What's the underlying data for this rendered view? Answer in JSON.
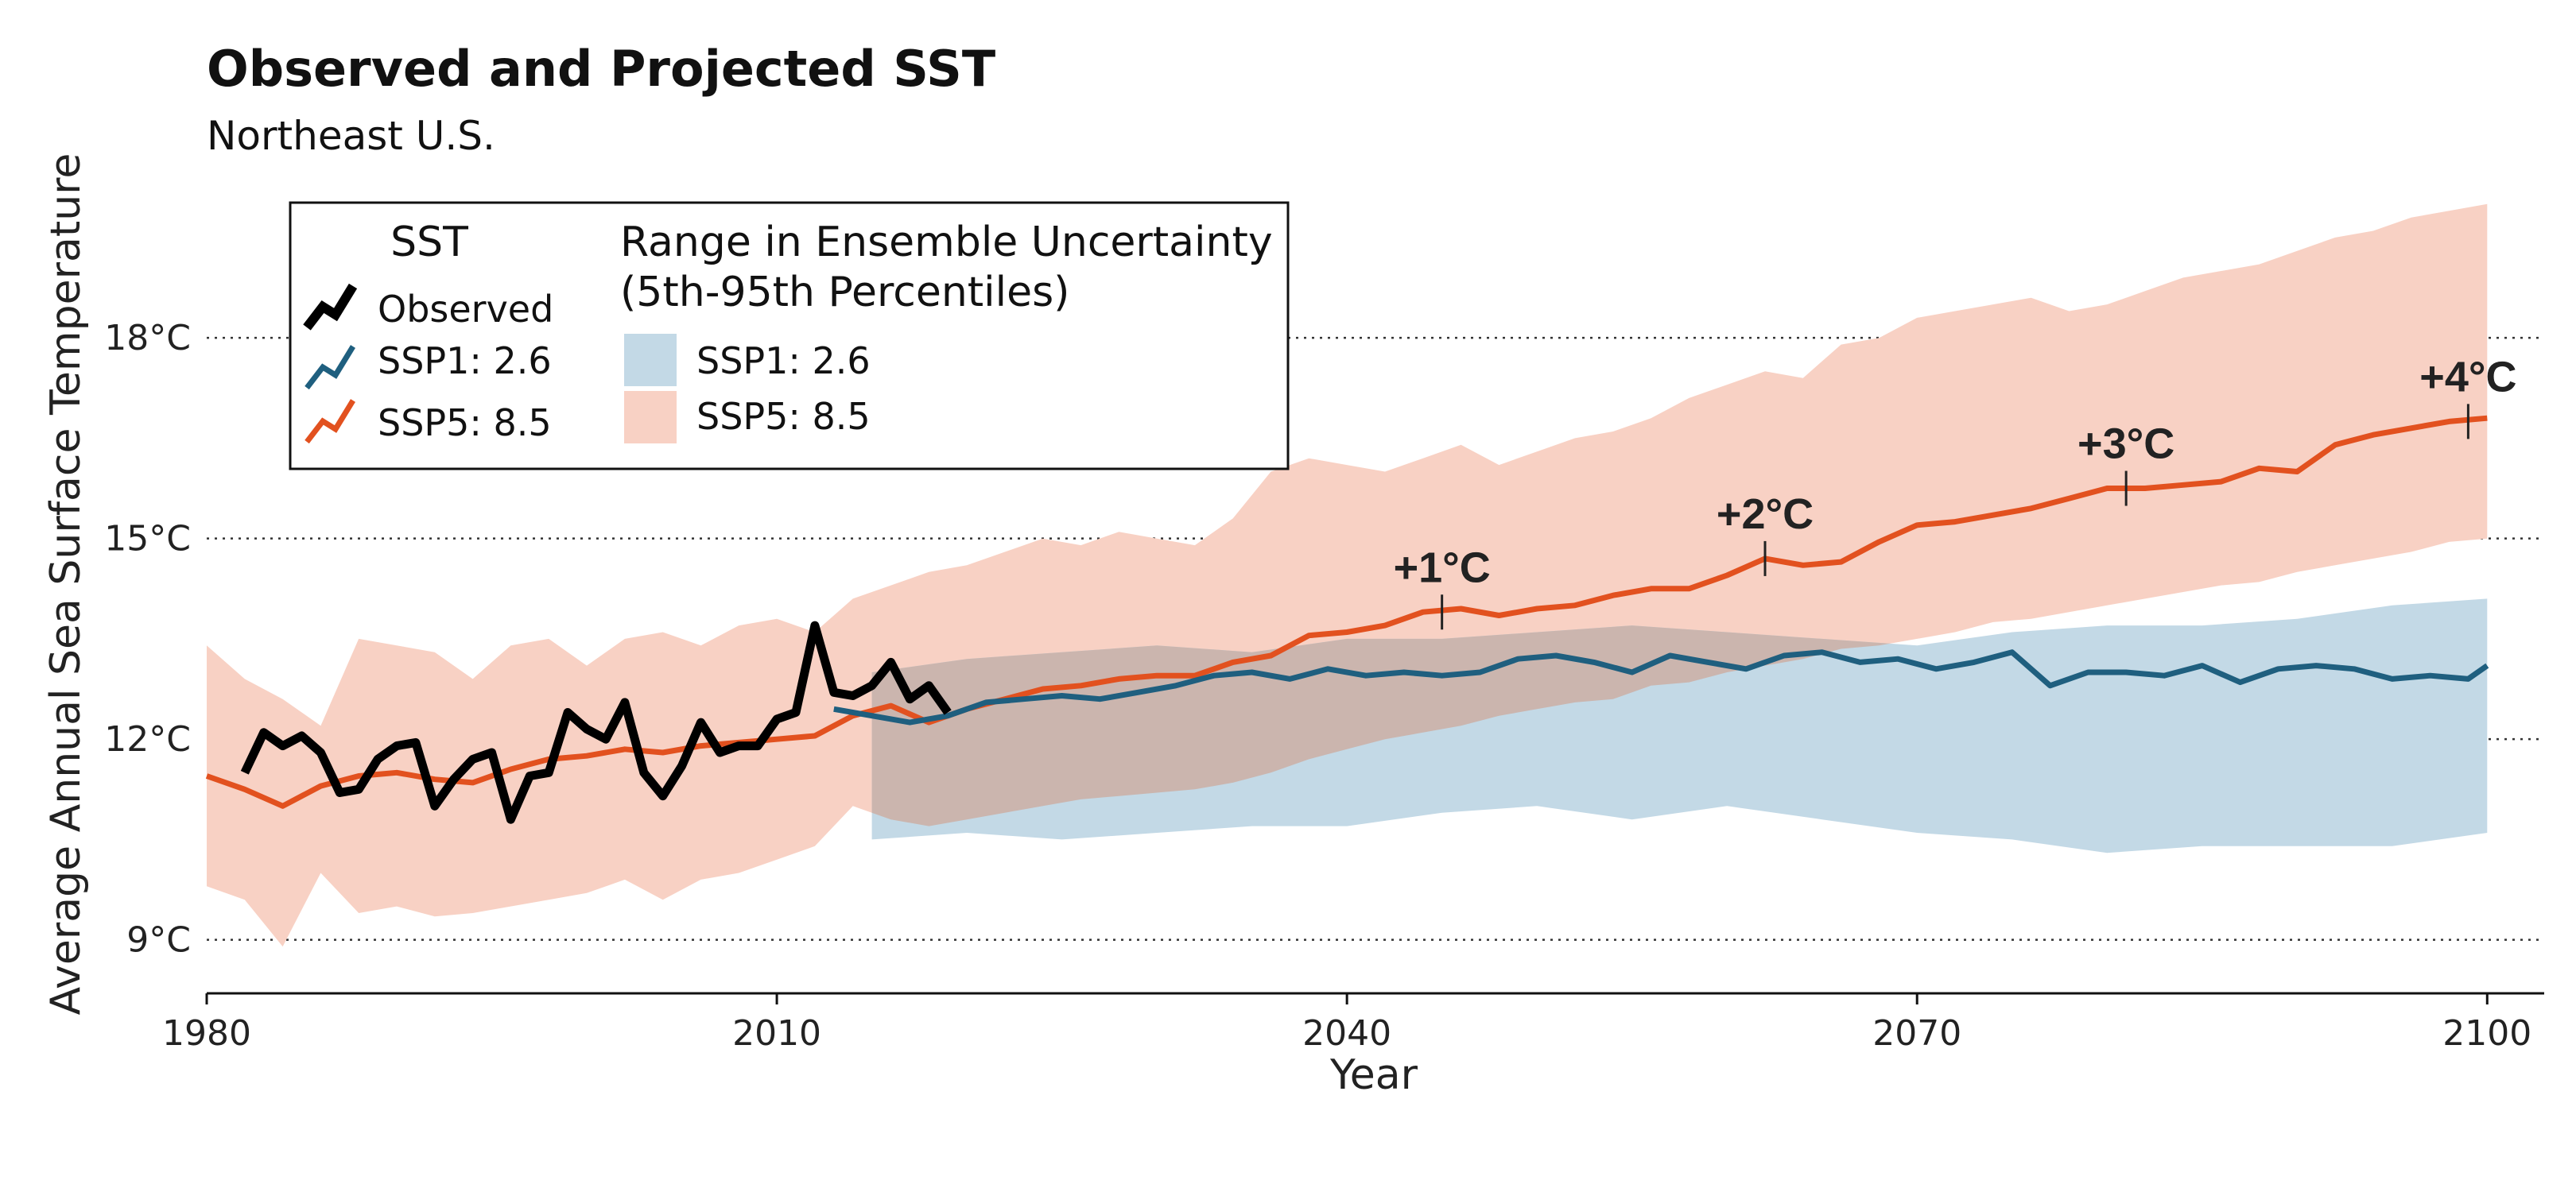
{
  "chart_data": {
    "type": "line",
    "title": "Observed and Projected SST",
    "subtitle": "Northeast U.S.",
    "xlabel": "Year",
    "ylabel": "Average Annual Sea Surface Temperature",
    "xlim": [
      1980,
      2103
    ],
    "ylim": [
      8.2,
      20.2
    ],
    "x_ticks": [
      1980,
      2010,
      2040,
      2070,
      2100
    ],
    "x_tick_labels": [
      "1980",
      "2010",
      "2040",
      "2070",
      "2100"
    ],
    "y_ticks": [
      9,
      12,
      15,
      18
    ],
    "y_tick_labels": [
      "9°C",
      "12°C",
      "15°C",
      "18°C"
    ],
    "grid": "horizontal dotted",
    "legend_placement": "top-left",
    "legend": {
      "sst_title": "SST",
      "sst_items": [
        "Observed",
        "SSP1: 2.6",
        "SSP5: 8.5"
      ],
      "range_title_line1": "Range in Ensemble Uncertainty",
      "range_title_line2": "(5th-95th Percentiles)",
      "range_items": [
        "SSP1: 2.6",
        "SSP5: 8.5"
      ]
    },
    "colors": {
      "observed": "#000000",
      "ssp1": "#1f5f7f",
      "ssp5": "#e2511f",
      "ssp1_band": "#c3d9e6",
      "ssp5_band": "#f8d1c4",
      "overlap_band": "#cbb5ae"
    },
    "series": [
      {
        "name": "Observed",
        "x": [
          1982,
          1983,
          1984,
          1985,
          1986,
          1987,
          1988,
          1989,
          1990,
          1991,
          1992,
          1993,
          1994,
          1995,
          1996,
          1997,
          1998,
          1999,
          2000,
          2001,
          2002,
          2003,
          2004,
          2005,
          2006,
          2007,
          2008,
          2009,
          2010,
          2011,
          2012,
          2013,
          2014,
          2015,
          2016,
          2017,
          2018,
          2019
        ],
        "values": [
          11.5,
          12.1,
          11.9,
          12.05,
          11.8,
          11.2,
          11.25,
          11.7,
          11.9,
          11.95,
          11.0,
          11.4,
          11.7,
          11.8,
          10.8,
          11.45,
          11.5,
          12.4,
          12.15,
          12.0,
          12.55,
          11.5,
          11.15,
          11.6,
          12.25,
          11.8,
          11.9,
          11.9,
          12.3,
          12.4,
          13.7,
          12.7,
          12.65,
          12.8,
          13.15,
          12.6,
          12.8,
          12.4
        ]
      },
      {
        "name": "SSP1: 2.6",
        "x": [
          2013,
          2015,
          2017,
          2019,
          2021,
          2023,
          2025,
          2027,
          2029,
          2031,
          2033,
          2035,
          2037,
          2039,
          2041,
          2043,
          2045,
          2047,
          2049,
          2051,
          2053,
          2055,
          2057,
          2059,
          2061,
          2063,
          2065,
          2067,
          2069,
          2071,
          2073,
          2075,
          2077,
          2079,
          2081,
          2083,
          2085,
          2087,
          2089,
          2091,
          2093,
          2095,
          2097,
          2099,
          2100
        ],
        "values": [
          12.45,
          12.35,
          12.25,
          12.35,
          12.55,
          12.6,
          12.65,
          12.6,
          12.7,
          12.8,
          12.95,
          13.0,
          12.9,
          13.05,
          12.95,
          13.0,
          12.95,
          13.0,
          13.2,
          13.25,
          13.15,
          13.0,
          13.25,
          13.15,
          13.05,
          13.25,
          13.3,
          13.15,
          13.2,
          13.05,
          13.15,
          13.3,
          12.8,
          13.0,
          13.0,
          12.95,
          13.1,
          12.85,
          13.05,
          13.1,
          13.05,
          12.9,
          12.95,
          12.9,
          13.1
        ]
      },
      {
        "name": "SSP5: 8.5",
        "x": [
          1980,
          1982,
          1984,
          1986,
          1988,
          1990,
          1992,
          1994,
          1996,
          1998,
          2000,
          2002,
          2004,
          2006,
          2008,
          2010,
          2012,
          2014,
          2016,
          2018,
          2020,
          2022,
          2024,
          2026,
          2028,
          2030,
          2032,
          2034,
          2036,
          2038,
          2040,
          2042,
          2044,
          2046,
          2048,
          2050,
          2052,
          2054,
          2056,
          2058,
          2060,
          2062,
          2064,
          2066,
          2068,
          2070,
          2072,
          2074,
          2076,
          2078,
          2080,
          2082,
          2084,
          2086,
          2088,
          2090,
          2092,
          2094,
          2096,
          2098,
          2100
        ],
        "values": [
          11.45,
          11.25,
          11.0,
          11.3,
          11.45,
          11.5,
          11.4,
          11.35,
          11.55,
          11.7,
          11.75,
          11.85,
          11.8,
          11.9,
          11.95,
          12.0,
          12.05,
          12.35,
          12.5,
          12.25,
          12.45,
          12.6,
          12.75,
          12.8,
          12.9,
          12.95,
          12.95,
          13.15,
          13.25,
          13.55,
          13.6,
          13.7,
          13.9,
          13.95,
          13.85,
          13.95,
          14.0,
          14.15,
          14.25,
          14.25,
          14.45,
          14.7,
          14.6,
          14.65,
          14.95,
          15.2,
          15.25,
          15.35,
          15.45,
          15.6,
          15.75,
          15.75,
          15.8,
          15.85,
          16.05,
          16.0,
          16.4,
          16.55,
          16.65,
          16.75,
          16.8
        ]
      }
    ],
    "bands": [
      {
        "name": "SSP1: 2.6",
        "x": [
          2015,
          2020,
          2025,
          2030,
          2035,
          2040,
          2045,
          2050,
          2055,
          2060,
          2065,
          2070,
          2075,
          2080,
          2085,
          2090,
          2095,
          2100
        ],
        "low": [
          10.5,
          10.6,
          10.5,
          10.6,
          10.7,
          10.7,
          10.9,
          11.0,
          10.8,
          11.0,
          10.8,
          10.6,
          10.5,
          10.3,
          10.4,
          10.4,
          10.4,
          10.6
        ],
        "high": [
          13.0,
          13.2,
          13.3,
          13.4,
          13.3,
          13.5,
          13.5,
          13.6,
          13.7,
          13.6,
          13.5,
          13.4,
          13.6,
          13.7,
          13.7,
          13.8,
          14.0,
          14.1
        ]
      },
      {
        "name": "SSP5: 8.5",
        "x": [
          1980,
          1982,
          1984,
          1986,
          1988,
          1990,
          1992,
          1994,
          1996,
          1998,
          2000,
          2002,
          2004,
          2006,
          2008,
          2010,
          2012,
          2014,
          2016,
          2018,
          2020,
          2022,
          2024,
          2026,
          2028,
          2030,
          2032,
          2034,
          2036,
          2038,
          2040,
          2042,
          2044,
          2046,
          2048,
          2050,
          2052,
          2054,
          2056,
          2058,
          2060,
          2062,
          2064,
          2066,
          2068,
          2070,
          2072,
          2074,
          2076,
          2078,
          2080,
          2082,
          2084,
          2086,
          2088,
          2090,
          2092,
          2094,
          2096,
          2098,
          2100
        ],
        "low": [
          9.8,
          9.6,
          8.9,
          10.0,
          9.4,
          9.5,
          9.35,
          9.4,
          9.5,
          9.6,
          9.7,
          9.9,
          9.6,
          9.9,
          10.0,
          10.2,
          10.4,
          11.0,
          10.8,
          10.7,
          10.8,
          10.9,
          11.0,
          11.1,
          11.15,
          11.2,
          11.25,
          11.35,
          11.5,
          11.7,
          11.85,
          12.0,
          12.1,
          12.2,
          12.35,
          12.45,
          12.55,
          12.6,
          12.8,
          12.85,
          13.0,
          13.1,
          13.2,
          13.35,
          13.4,
          13.5,
          13.6,
          13.75,
          13.8,
          13.9,
          14.0,
          14.1,
          14.2,
          14.3,
          14.35,
          14.5,
          14.6,
          14.7,
          14.8,
          14.95,
          15.0
        ],
        "high": [
          13.4,
          12.9,
          12.6,
          12.2,
          13.5,
          13.4,
          13.3,
          12.9,
          13.4,
          13.5,
          13.1,
          13.5,
          13.6,
          13.4,
          13.7,
          13.8,
          13.6,
          14.1,
          14.3,
          14.5,
          14.6,
          14.8,
          15.0,
          14.9,
          15.1,
          15.0,
          14.9,
          15.3,
          16.0,
          16.2,
          16.1,
          16.0,
          16.2,
          16.4,
          16.1,
          16.3,
          16.5,
          16.6,
          16.8,
          17.1,
          17.3,
          17.5,
          17.4,
          17.9,
          18.0,
          18.3,
          18.4,
          18.5,
          18.6,
          18.4,
          18.5,
          18.7,
          18.9,
          19.0,
          19.1,
          19.3,
          19.5,
          19.6,
          19.8,
          19.9,
          20.0
        ]
      }
    ],
    "annotations": [
      {
        "label": "+1°C",
        "x": 2045,
        "y": 13.9
      },
      {
        "label": "+2°C",
        "x": 2062,
        "y": 14.7
      },
      {
        "label": "+3°C",
        "x": 2081,
        "y": 15.75
      },
      {
        "label": "+4°C",
        "x": 2099,
        "y": 16.75
      }
    ]
  }
}
